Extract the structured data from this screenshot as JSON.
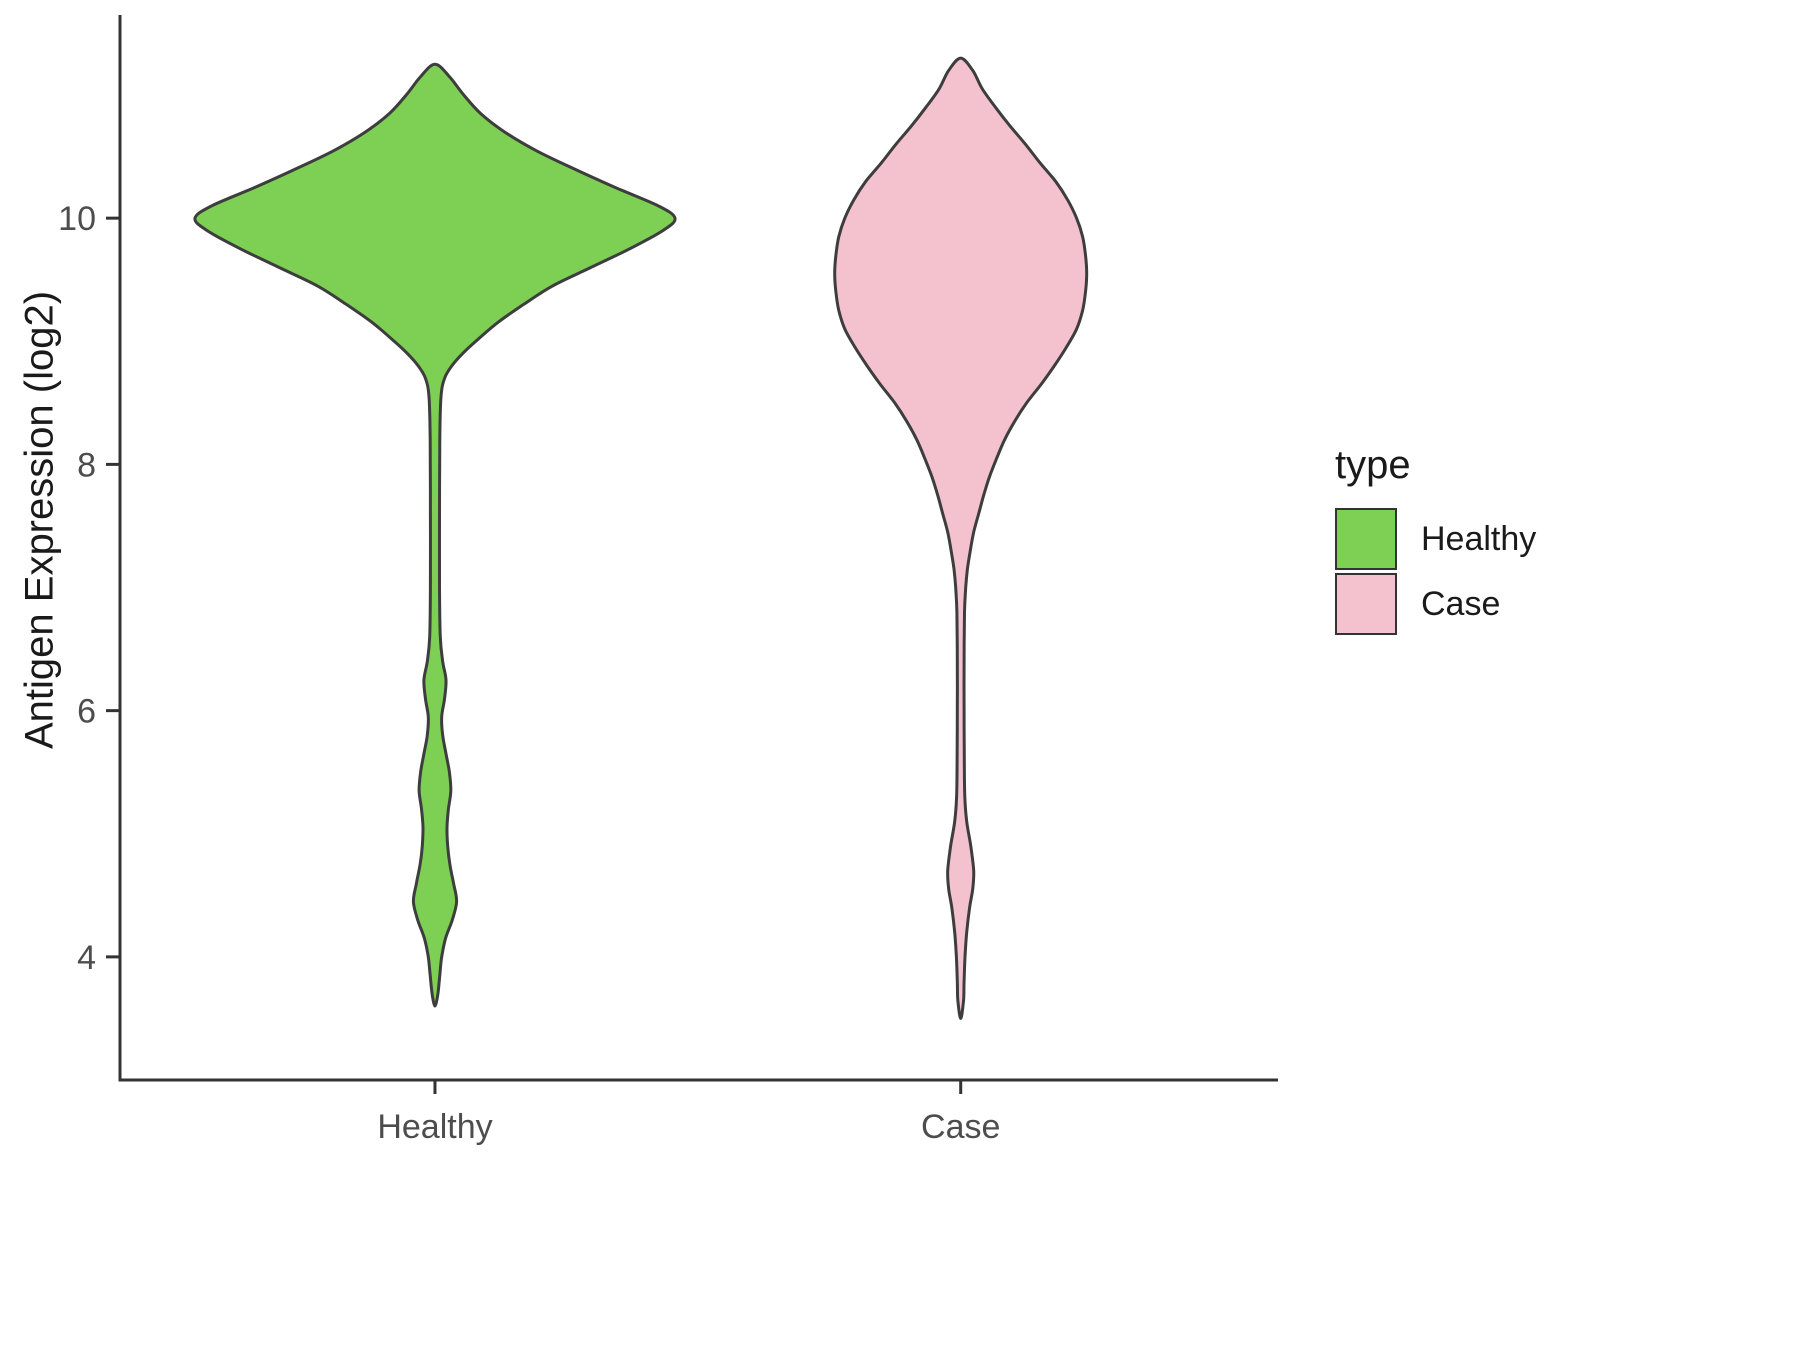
{
  "chart_data": {
    "type": "violin",
    "title": "",
    "xlabel": "",
    "ylabel": "Antigen Expression (log2)",
    "legend_title": "type",
    "categories": [
      "Healthy",
      "Case"
    ],
    "ylim": [
      3.0,
      11.65
    ],
    "yticks": [
      4,
      6,
      8,
      10
    ],
    "axis_color": "#333333",
    "tick_label_color": "#4d4d4d",
    "outline_color": "#3d3d3d",
    "legend_position": "right",
    "series": [
      {
        "name": "Healthy",
        "color": "#7dd054",
        "profile_description": "pairs of [expression_value, relative_density] where 1.0 is the widest point of the Healthy violin",
        "profile": [
          [
            11.25,
            0
          ],
          [
            11.15,
            0.06
          ],
          [
            11.0,
            0.12
          ],
          [
            10.85,
            0.19
          ],
          [
            10.7,
            0.29
          ],
          [
            10.55,
            0.42
          ],
          [
            10.4,
            0.58
          ],
          [
            10.25,
            0.75
          ],
          [
            10.1,
            0.93
          ],
          [
            10.0,
            1.0
          ],
          [
            9.9,
            0.95
          ],
          [
            9.75,
            0.81
          ],
          [
            9.6,
            0.65
          ],
          [
            9.45,
            0.49
          ],
          [
            9.3,
            0.37
          ],
          [
            9.15,
            0.26
          ],
          [
            9.0,
            0.17
          ],
          [
            8.9,
            0.115
          ],
          [
            8.8,
            0.07
          ],
          [
            8.7,
            0.04
          ],
          [
            8.55,
            0.025
          ],
          [
            8.2,
            0.02
          ],
          [
            7.6,
            0.019
          ],
          [
            7.0,
            0.019
          ],
          [
            6.6,
            0.022
          ],
          [
            6.4,
            0.032
          ],
          [
            6.25,
            0.046
          ],
          [
            6.1,
            0.04
          ],
          [
            5.95,
            0.028
          ],
          [
            5.8,
            0.032
          ],
          [
            5.65,
            0.046
          ],
          [
            5.5,
            0.06
          ],
          [
            5.35,
            0.066
          ],
          [
            5.2,
            0.056
          ],
          [
            5.05,
            0.05
          ],
          [
            4.9,
            0.053
          ],
          [
            4.75,
            0.062
          ],
          [
            4.6,
            0.077
          ],
          [
            4.45,
            0.09
          ],
          [
            4.3,
            0.072
          ],
          [
            4.15,
            0.044
          ],
          [
            4.0,
            0.028
          ],
          [
            3.85,
            0.02
          ],
          [
            3.7,
            0.012
          ],
          [
            3.6,
            0
          ]
        ]
      },
      {
        "name": "Case",
        "color": "#f4c2cf",
        "profile_description": "pairs of [expression_value, relative_density] on the same density scale as Healthy",
        "profile": [
          [
            11.3,
            0
          ],
          [
            11.2,
            0.05
          ],
          [
            11.05,
            0.09
          ],
          [
            10.9,
            0.145
          ],
          [
            10.75,
            0.205
          ],
          [
            10.6,
            0.27
          ],
          [
            10.45,
            0.33
          ],
          [
            10.3,
            0.395
          ],
          [
            10.15,
            0.445
          ],
          [
            10.0,
            0.483
          ],
          [
            9.85,
            0.508
          ],
          [
            9.7,
            0.52
          ],
          [
            9.55,
            0.525
          ],
          [
            9.4,
            0.52
          ],
          [
            9.25,
            0.508
          ],
          [
            9.1,
            0.483
          ],
          [
            8.95,
            0.44
          ],
          [
            8.8,
            0.39
          ],
          [
            8.65,
            0.335
          ],
          [
            8.5,
            0.275
          ],
          [
            8.35,
            0.225
          ],
          [
            8.2,
            0.183
          ],
          [
            8.05,
            0.15
          ],
          [
            7.9,
            0.12
          ],
          [
            7.75,
            0.096
          ],
          [
            7.6,
            0.075
          ],
          [
            7.45,
            0.054
          ],
          [
            7.3,
            0.04
          ],
          [
            7.15,
            0.028
          ],
          [
            7.0,
            0.021
          ],
          [
            6.8,
            0.016
          ],
          [
            6.4,
            0.014
          ],
          [
            6.0,
            0.014
          ],
          [
            5.6,
            0.015
          ],
          [
            5.3,
            0.017
          ],
          [
            5.1,
            0.025
          ],
          [
            4.9,
            0.042
          ],
          [
            4.7,
            0.054
          ],
          [
            4.55,
            0.05
          ],
          [
            4.4,
            0.037
          ],
          [
            4.2,
            0.025
          ],
          [
            4.0,
            0.018
          ],
          [
            3.8,
            0.014
          ],
          [
            3.65,
            0.012
          ],
          [
            3.5,
            0
          ]
        ]
      }
    ]
  }
}
